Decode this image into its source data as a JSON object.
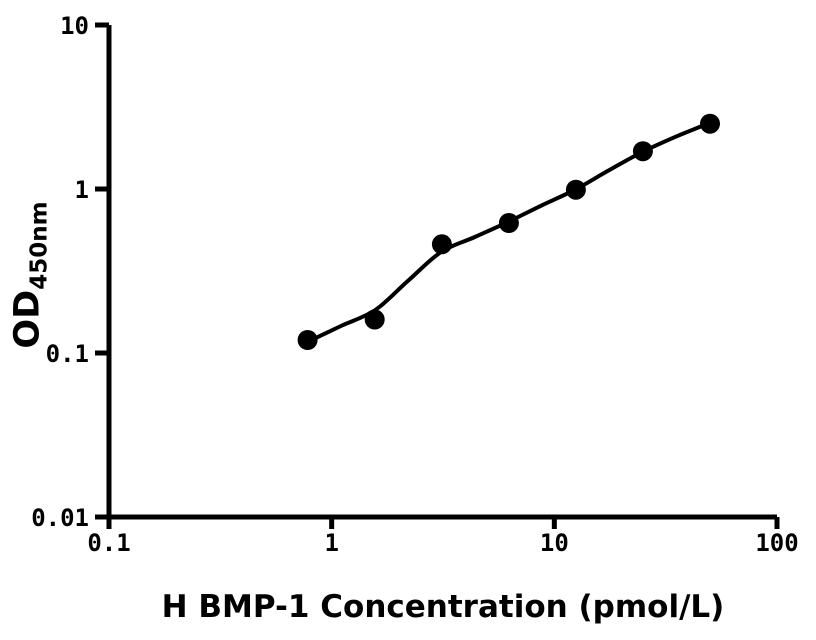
{
  "chart_data": {
    "type": "scatter",
    "title": "",
    "xlabel": "H BMP-1 Concentration (pmol/L)",
    "ylabel_main": "OD",
    "ylabel_sub": "450nm",
    "x_scale": "log",
    "y_scale": "log",
    "xlim": [
      0.1,
      100
    ],
    "ylim": [
      0.01,
      10
    ],
    "grid": false,
    "legend": false,
    "marker_color": "#000000",
    "line_color": "#000000",
    "axis_color": "#000000",
    "background": "#ffffff",
    "x_ticks": [
      {
        "value": 0.1,
        "label": "0.1"
      },
      {
        "value": 1,
        "label": "1"
      },
      {
        "value": 10,
        "label": "10"
      },
      {
        "value": 100,
        "label": "100"
      }
    ],
    "y_ticks": [
      {
        "value": 10,
        "label": "10"
      },
      {
        "value": 1,
        "label": "1"
      },
      {
        "value": 0.1,
        "label": "0.1"
      },
      {
        "value": 0.01,
        "label": "0.01"
      }
    ],
    "points": [
      {
        "x": 0.78,
        "y": 0.12
      },
      {
        "x": 1.56,
        "y": 0.16
      },
      {
        "x": 3.125,
        "y": 0.46
      },
      {
        "x": 6.25,
        "y": 0.62
      },
      {
        "x": 12.5,
        "y": 0.99
      },
      {
        "x": 25,
        "y": 1.7
      },
      {
        "x": 50,
        "y": 2.5
      }
    ],
    "fit_curve": [
      {
        "x": 0.78,
        "y": 0.117
      },
      {
        "x": 1.1,
        "y": 0.146
      },
      {
        "x": 1.57,
        "y": 0.183
      },
      {
        "x": 2.2,
        "y": 0.275
      },
      {
        "x": 3.1,
        "y": 0.413
      },
      {
        "x": 4.4,
        "y": 0.51
      },
      {
        "x": 6.2,
        "y": 0.63
      },
      {
        "x": 8.7,
        "y": 0.79
      },
      {
        "x": 12.4,
        "y": 0.99
      },
      {
        "x": 17.4,
        "y": 1.29
      },
      {
        "x": 24.8,
        "y": 1.68
      },
      {
        "x": 35,
        "y": 2.08
      },
      {
        "x": 50,
        "y": 2.53
      }
    ]
  }
}
